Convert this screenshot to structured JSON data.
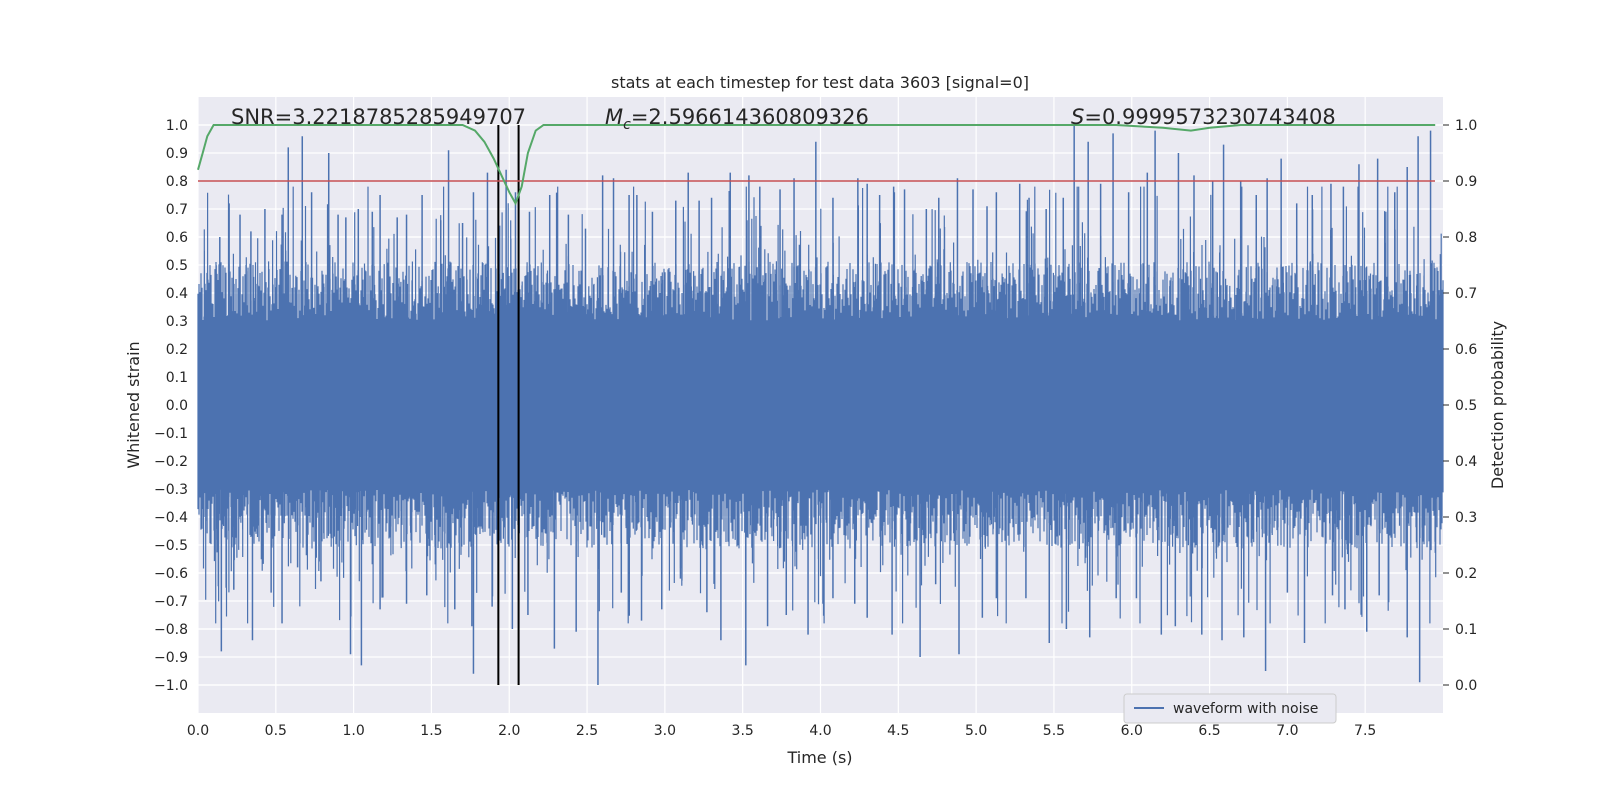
{
  "chart_data": {
    "type": "line",
    "title": "stats at each timestep for test data 3603 [signal=0]",
    "xlabel": "Time (s)",
    "ylabel": "Whitened strain",
    "ylabel_right": "Detection probability",
    "xlim": [
      0.0,
      8.0
    ],
    "ylim": [
      -1.1,
      1.1
    ],
    "ylim_right": [
      -0.05,
      1.05
    ],
    "x_ticks": [
      "0.0",
      "0.5",
      "1.0",
      "1.5",
      "2.0",
      "2.5",
      "3.0",
      "3.5",
      "4.0",
      "4.5",
      "5.0",
      "5.5",
      "6.0",
      "6.5",
      "7.0",
      "7.5"
    ],
    "y_ticks": [
      "1.0",
      "0.9",
      "0.8",
      "0.7",
      "0.6",
      "0.5",
      "0.4",
      "0.3",
      "0.2",
      "0.1",
      "0.0",
      "−0.1",
      "−0.2",
      "−0.3",
      "−0.4",
      "−0.5",
      "−0.6",
      "−0.7",
      "−0.8",
      "−0.9",
      "−1.0"
    ],
    "y_ticks_right": [
      "1.0",
      "0.9",
      "0.8",
      "0.7",
      "0.6",
      "0.5",
      "0.4",
      "0.3",
      "0.2",
      "0.1",
      "0.0"
    ],
    "grid": true,
    "legend": {
      "label": "waveform with noise",
      "location": "lower-right"
    },
    "annotations": {
      "snr_label": "SNR=3.2218785285949707",
      "mc_symbol": "M",
      "mc_subscript": "c",
      "mc_value": "=2.596614360809326",
      "s_symbol": "S",
      "s_value": "=0.9999573230743408"
    },
    "vertical_lines_x": [
      1.93,
      2.06
    ],
    "threshold": {
      "axis": "right",
      "value": 0.9
    },
    "series": [
      {
        "name": "waveform with noise",
        "axis": "left",
        "color": "#4c72b0",
        "kind": "noise",
        "typical_range": [
          -0.42,
          0.42
        ],
        "sample_rate_hz": 2048,
        "peaks": [
          [
            0.14,
            0.6
          ],
          [
            0.2,
            0.72
          ],
          [
            0.27,
            0.68
          ],
          [
            0.34,
            0.62
          ],
          [
            0.43,
            0.7
          ],
          [
            0.54,
            0.68
          ],
          [
            0.58,
            0.92
          ],
          [
            0.67,
            0.96
          ],
          [
            0.73,
            0.76
          ],
          [
            0.84,
            0.9
          ],
          [
            0.9,
            0.68
          ],
          [
            0.95,
            0.67
          ],
          [
            1.03,
            0.7
          ],
          [
            1.12,
            0.69
          ],
          [
            1.17,
            0.75
          ],
          [
            1.28,
            0.67
          ],
          [
            1.34,
            0.68
          ],
          [
            1.44,
            0.75
          ],
          [
            1.56,
            0.66
          ],
          [
            1.61,
            0.91
          ],
          [
            1.7,
            0.65
          ],
          [
            1.77,
            0.76
          ],
          [
            1.86,
            0.83
          ],
          [
            1.98,
            0.84
          ],
          [
            2.04,
            0.76
          ],
          [
            2.13,
            0.69
          ],
          [
            2.26,
            0.75
          ],
          [
            2.38,
            0.68
          ],
          [
            2.49,
            0.63
          ],
          [
            2.6,
            0.82
          ],
          [
            2.67,
            0.81
          ],
          [
            2.77,
            0.75
          ],
          [
            2.82,
            0.75
          ],
          [
            2.92,
            0.69
          ],
          [
            3.07,
            0.73
          ],
          [
            3.15,
            0.83
          ],
          [
            3.22,
            0.73
          ],
          [
            3.3,
            0.74
          ],
          [
            3.42,
            0.83
          ],
          [
            3.54,
            0.82
          ],
          [
            3.61,
            0.78
          ],
          [
            3.74,
            0.77
          ],
          [
            3.83,
            0.81
          ],
          [
            3.97,
            0.94
          ],
          [
            4.08,
            0.74
          ],
          [
            4.24,
            0.81
          ],
          [
            4.3,
            0.79
          ],
          [
            4.38,
            0.75
          ],
          [
            4.47,
            0.78
          ],
          [
            4.54,
            0.77
          ],
          [
            4.68,
            0.7
          ],
          [
            4.76,
            0.74
          ],
          [
            4.88,
            0.81
          ],
          [
            4.98,
            0.77
          ],
          [
            5.07,
            0.71
          ],
          [
            5.13,
            0.76
          ],
          [
            5.28,
            0.79
          ],
          [
            5.34,
            0.74
          ],
          [
            5.45,
            0.7
          ],
          [
            5.56,
            0.74
          ],
          [
            5.63,
            1.0
          ],
          [
            5.72,
            0.94
          ],
          [
            5.8,
            0.79
          ],
          [
            5.88,
            0.97
          ],
          [
            5.98,
            0.76
          ],
          [
            6.1,
            0.83
          ],
          [
            6.15,
            0.98
          ],
          [
            6.3,
            0.9
          ],
          [
            6.4,
            0.82
          ],
          [
            6.52,
            0.8
          ],
          [
            6.59,
            0.93
          ],
          [
            6.7,
            0.8
          ],
          [
            6.8,
            0.75
          ],
          [
            6.87,
            0.81
          ],
          [
            6.96,
            0.88
          ],
          [
            7.06,
            0.72
          ],
          [
            7.16,
            0.75
          ],
          [
            7.28,
            0.79
          ],
          [
            7.36,
            0.78
          ],
          [
            7.46,
            0.86
          ],
          [
            7.58,
            0.88
          ],
          [
            7.69,
            0.76
          ],
          [
            7.77,
            0.85
          ],
          [
            7.84,
            0.96
          ],
          [
            7.92,
            0.98
          ]
        ],
        "troughs": [
          [
            0.15,
            -0.88
          ],
          [
            0.23,
            -0.66
          ],
          [
            0.35,
            -0.84
          ],
          [
            0.47,
            -0.67
          ],
          [
            0.54,
            -0.78
          ],
          [
            0.64,
            -0.58
          ],
          [
            0.79,
            -0.63
          ],
          [
            0.98,
            -0.89
          ],
          [
            1.05,
            -0.93
          ],
          [
            1.17,
            -0.73
          ],
          [
            1.34,
            -0.71
          ],
          [
            1.47,
            -0.68
          ],
          [
            1.65,
            -0.73
          ],
          [
            1.76,
            -0.79
          ],
          [
            1.77,
            -0.96
          ],
          [
            1.89,
            -0.72
          ],
          [
            2.02,
            -0.8
          ],
          [
            2.12,
            -0.75
          ],
          [
            2.29,
            -0.87
          ],
          [
            2.43,
            -0.81
          ],
          [
            2.57,
            -1.0
          ],
          [
            2.72,
            -0.67
          ],
          [
            2.85,
            -0.77
          ],
          [
            2.98,
            -0.73
          ],
          [
            3.1,
            -0.62
          ],
          [
            3.27,
            -0.74
          ],
          [
            3.36,
            -0.84
          ],
          [
            3.52,
            -0.93
          ],
          [
            3.66,
            -0.79
          ],
          [
            3.78,
            -0.75
          ],
          [
            3.92,
            -0.82
          ],
          [
            4.08,
            -0.69
          ],
          [
            4.22,
            -0.71
          ],
          [
            4.3,
            -0.76
          ],
          [
            4.46,
            -0.82
          ],
          [
            4.64,
            -0.9
          ],
          [
            4.74,
            -0.64
          ],
          [
            4.89,
            -0.89
          ],
          [
            5.04,
            -0.76
          ],
          [
            5.13,
            -0.69
          ],
          [
            5.32,
            -0.69
          ],
          [
            5.47,
            -0.85
          ],
          [
            5.58,
            -0.8
          ],
          [
            5.73,
            -0.83
          ],
          [
            5.9,
            -0.69
          ],
          [
            6.03,
            -0.69
          ],
          [
            6.19,
            -0.82
          ],
          [
            6.28,
            -0.79
          ],
          [
            6.45,
            -0.82
          ],
          [
            6.58,
            -0.84
          ],
          [
            6.72,
            -0.83
          ],
          [
            6.86,
            -0.95
          ],
          [
            7.0,
            -0.67
          ],
          [
            7.11,
            -0.85
          ],
          [
            7.29,
            -0.68
          ],
          [
            7.37,
            -0.73
          ],
          [
            7.51,
            -0.81
          ],
          [
            7.59,
            -0.68
          ],
          [
            7.77,
            -0.83
          ],
          [
            7.85,
            -0.99
          ]
        ]
      },
      {
        "name": "detection probability",
        "axis": "right",
        "color": "#55a868",
        "x": [
          0.0,
          0.03,
          0.06,
          0.1,
          0.2,
          0.5,
          1.0,
          1.5,
          1.7,
          1.78,
          1.84,
          1.9,
          1.95,
          2.0,
          2.04,
          2.08,
          2.12,
          2.17,
          2.22,
          2.3,
          2.6,
          3.0,
          4.0,
          5.0,
          5.5,
          5.9,
          6.2,
          6.38,
          6.5,
          6.7,
          7.0,
          7.5,
          7.95
        ],
        "values": [
          0.92,
          0.95,
          0.98,
          1.0,
          1.0,
          1.0,
          1.0,
          1.0,
          1.0,
          0.99,
          0.97,
          0.94,
          0.91,
          0.88,
          0.86,
          0.89,
          0.95,
          0.99,
          1.0,
          1.0,
          1.0,
          1.0,
          1.0,
          1.0,
          1.0,
          1.0,
          0.995,
          0.99,
          0.995,
          1.0,
          1.0,
          1.0,
          1.0
        ]
      }
    ]
  }
}
